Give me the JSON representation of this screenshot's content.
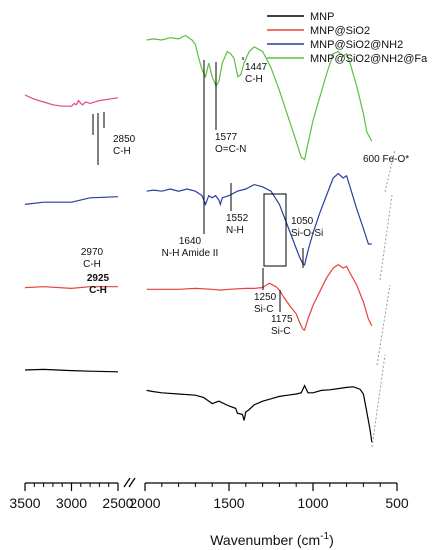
{
  "chart_data": {
    "type": "line",
    "title": "",
    "xlabel": "Wavenumber (cm",
    "xlabel_sup": "-1",
    "xlabel_close": ")",
    "ylabel": "",
    "xlim_left_panel": [
      3500,
      2500
    ],
    "xlim_right_panel": [
      2000,
      500
    ],
    "xticks_left": [
      3500,
      3000,
      2500
    ],
    "xticks_right": [
      2000,
      1500,
      1000,
      500
    ],
    "axis_break": true,
    "grid": false,
    "legend_position": "top-right",
    "series": [
      {
        "name": "MNP",
        "color": "#000000",
        "points": [
          [
            3500,
            0.1
          ],
          [
            3300,
            0.095
          ],
          [
            3000,
            0.105
          ],
          [
            2800,
            0.11
          ],
          [
            2500,
            0.115
          ],
          [
            1990,
            0.27
          ],
          [
            1950,
            0.28
          ],
          [
            1900,
            0.29
          ],
          [
            1800,
            0.3
          ],
          [
            1700,
            0.31
          ],
          [
            1650,
            0.33
          ],
          [
            1600,
            0.38
          ],
          [
            1560,
            0.36
          ],
          [
            1500,
            0.4
          ],
          [
            1460,
            0.42
          ],
          [
            1450,
            0.46
          ],
          [
            1420,
            0.47
          ],
          [
            1410,
            0.52
          ],
          [
            1400,
            0.45
          ],
          [
            1380,
            0.43
          ],
          [
            1350,
            0.39
          ],
          [
            1300,
            0.36
          ],
          [
            1250,
            0.34
          ],
          [
            1200,
            0.32
          ],
          [
            1150,
            0.31
          ],
          [
            1100,
            0.3
          ],
          [
            1070,
            0.29
          ],
          [
            1050,
            0.23
          ],
          [
            1030,
            0.29
          ],
          [
            1000,
            0.29
          ],
          [
            950,
            0.27
          ],
          [
            900,
            0.265
          ],
          [
            850,
            0.255
          ],
          [
            800,
            0.245
          ],
          [
            760,
            0.24
          ],
          [
            720,
            0.26
          ],
          [
            700,
            0.3
          ],
          [
            680,
            0.45
          ],
          [
            660,
            0.6
          ],
          [
            650,
            0.7
          ]
        ]
      },
      {
        "name": "MNP@SiO2",
        "color": "#e8413a",
        "points": [
          [
            3500,
            0.115
          ],
          [
            3300,
            0.11
          ],
          [
            3000,
            0.12
          ],
          [
            2800,
            0.11
          ],
          [
            2500,
            0.11
          ],
          [
            1990,
            0.125
          ],
          [
            1900,
            0.125
          ],
          [
            1800,
            0.125
          ],
          [
            1700,
            0.12
          ],
          [
            1600,
            0.125
          ],
          [
            1550,
            0.13
          ],
          [
            1500,
            0.125
          ],
          [
            1400,
            0.12
          ],
          [
            1350,
            0.12
          ],
          [
            1300,
            0.115
          ],
          [
            1260,
            0.09
          ],
          [
            1250,
            0.095
          ],
          [
            1220,
            0.11
          ],
          [
            1200,
            0.13
          ],
          [
            1175,
            0.17
          ],
          [
            1140,
            0.22
          ],
          [
            1100,
            0.27
          ],
          [
            1080,
            0.32
          ],
          [
            1060,
            0.36
          ],
          [
            1050,
            0.365
          ],
          [
            1030,
            0.3
          ],
          [
            1000,
            0.22
          ],
          [
            960,
            0.14
          ],
          [
            920,
            0.06
          ],
          [
            880,
            0.0
          ],
          [
            850,
            -0.02
          ],
          [
            820,
            0.0
          ],
          [
            800,
            -0.01
          ],
          [
            780,
            0.03
          ],
          [
            740,
            0.1
          ],
          [
            700,
            0.2
          ],
          [
            670,
            0.3
          ],
          [
            650,
            0.34
          ]
        ]
      },
      {
        "name": "MNP@SiO2@NH2",
        "color": "#2a3f9c",
        "points": [
          [
            3500,
            0.12
          ],
          [
            3300,
            0.11
          ],
          [
            3000,
            0.11
          ],
          [
            2800,
            0.09
          ],
          [
            2500,
            0.085
          ],
          [
            1990,
            0.06
          ],
          [
            1950,
            0.055
          ],
          [
            1900,
            0.06
          ],
          [
            1850,
            0.05
          ],
          [
            1800,
            0.06
          ],
          [
            1750,
            0.05
          ],
          [
            1700,
            0.06
          ],
          [
            1660,
            0.08
          ],
          [
            1640,
            0.12
          ],
          [
            1620,
            0.08
          ],
          [
            1600,
            0.09
          ],
          [
            1580,
            0.08
          ],
          [
            1560,
            0.1
          ],
          [
            1552,
            0.12
          ],
          [
            1540,
            0.09
          ],
          [
            1500,
            0.08
          ],
          [
            1450,
            0.06
          ],
          [
            1400,
            0.05
          ],
          [
            1350,
            0.03
          ],
          [
            1300,
            0.04
          ],
          [
            1250,
            0.06
          ],
          [
            1200,
            0.12
          ],
          [
            1150,
            0.22
          ],
          [
            1100,
            0.32
          ],
          [
            1080,
            0.36
          ],
          [
            1060,
            0.39
          ],
          [
            1050,
            0.395
          ],
          [
            1030,
            0.33
          ],
          [
            1000,
            0.25
          ],
          [
            960,
            0.16
          ],
          [
            920,
            0.08
          ],
          [
            880,
            0.0
          ],
          [
            850,
            -0.02
          ],
          [
            820,
            0.0
          ],
          [
            800,
            -0.01
          ],
          [
            780,
            0.04
          ],
          [
            740,
            0.14
          ],
          [
            700,
            0.23
          ],
          [
            670,
            0.3
          ],
          [
            650,
            0.3
          ]
        ]
      },
      {
        "name": "MNP@SiO2@NH2@Fa",
        "color": "#5cbf3f",
        "points": [
          [
            1990,
            0.0
          ],
          [
            1950,
            -0.005
          ],
          [
            1900,
            0.0
          ],
          [
            1850,
            -0.01
          ],
          [
            1800,
            -0.005
          ],
          [
            1760,
            -0.02
          ],
          [
            1720,
            0.0
          ],
          [
            1700,
            0.02
          ],
          [
            1680,
            0.08
          ],
          [
            1660,
            0.13
          ],
          [
            1640,
            0.16
          ],
          [
            1620,
            0.1
          ],
          [
            1600,
            0.16
          ],
          [
            1577,
            0.2
          ],
          [
            1560,
            0.18
          ],
          [
            1540,
            0.1
          ],
          [
            1510,
            0.05
          ],
          [
            1490,
            0.06
          ],
          [
            1470,
            0.08
          ],
          [
            1447,
            0.16
          ],
          [
            1430,
            0.15
          ],
          [
            1410,
            0.1
          ],
          [
            1380,
            0.05
          ],
          [
            1350,
            0.03
          ],
          [
            1300,
            0.05
          ],
          [
            1250,
            0.12
          ],
          [
            1200,
            0.22
          ],
          [
            1150,
            0.33
          ],
          [
            1100,
            0.44
          ],
          [
            1070,
            0.51
          ],
          [
            1050,
            0.52
          ],
          [
            1030,
            0.45
          ],
          [
            1000,
            0.35
          ],
          [
            960,
            0.25
          ],
          [
            920,
            0.15
          ],
          [
            880,
            0.06
          ],
          [
            850,
            0.05
          ],
          [
            820,
            0.07
          ],
          [
            800,
            0.06
          ],
          [
            780,
            0.1
          ],
          [
            740,
            0.2
          ],
          [
            700,
            0.32
          ],
          [
            680,
            0.4
          ],
          [
            650,
            0.44
          ]
        ]
      },
      {
        "name": "",
        "color": "#e0458f",
        "points": [
          [
            3500,
            0.0
          ],
          [
            3400,
            0.03
          ],
          [
            3300,
            0.05
          ],
          [
            3200,
            0.07
          ],
          [
            3100,
            0.08
          ],
          [
            3000,
            0.08
          ],
          [
            2970,
            0.06
          ],
          [
            2950,
            0.07
          ],
          [
            2925,
            0.04
          ],
          [
            2900,
            0.06
          ],
          [
            2880,
            0.07
          ],
          [
            2850,
            0.05
          ],
          [
            2800,
            0.06
          ],
          [
            2700,
            0.04
          ],
          [
            2600,
            0.03
          ],
          [
            2500,
            0.02
          ]
        ]
      }
    ],
    "annotations": [
      {
        "lines": [
          "2970",
          "C-H"
        ],
        "x": 2970
      },
      {
        "lines": [
          "2925",
          "C-H"
        ],
        "x": 2925,
        "bold": true
      },
      {
        "lines": [
          "2850",
          "C-H"
        ],
        "x": 2850
      },
      {
        "lines": [
          "1447",
          "C-H"
        ],
        "x": 1447
      },
      {
        "lines": [
          "1577",
          "O=C-N"
        ],
        "x": 1577
      },
      {
        "lines": [
          "1552",
          "N-H"
        ],
        "x": 1552
      },
      {
        "lines": [
          "1640",
          "N-H Amide II"
        ],
        "x": 1640
      },
      {
        "lines": [
          "1050",
          "Si-O-Si"
        ],
        "x": 1050
      },
      {
        "lines": [
          "1250",
          "Si-C"
        ],
        "x": 1250
      },
      {
        "lines": [
          "1175",
          "Si-C"
        ],
        "x": 1175
      },
      {
        "lines": [
          "600 Fe-O*"
        ],
        "x": 600
      }
    ]
  }
}
